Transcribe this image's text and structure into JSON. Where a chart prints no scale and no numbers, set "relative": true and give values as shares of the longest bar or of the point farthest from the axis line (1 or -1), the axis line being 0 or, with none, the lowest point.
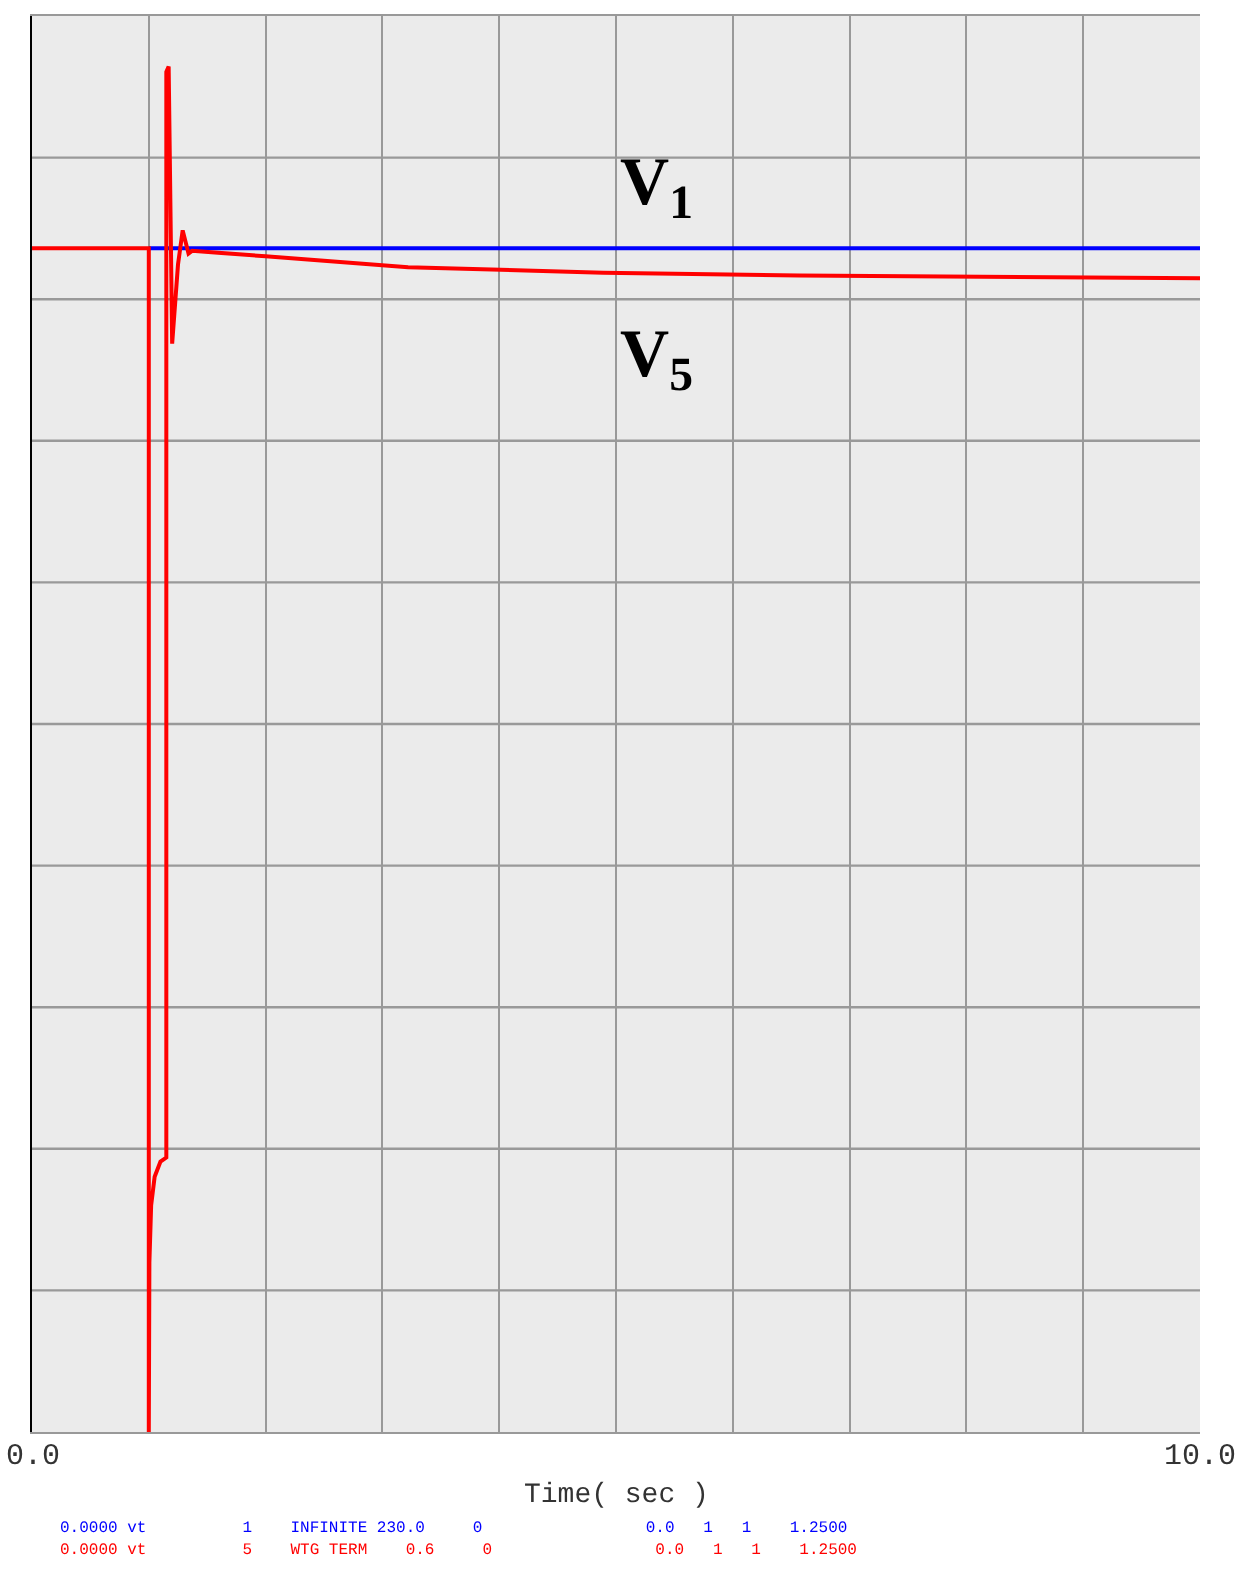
{
  "chart_data": {
    "type": "line",
    "xlabel": "Time( sec )",
    "x": [
      0,
      1.0,
      1.0,
      1.005,
      1.02,
      1.05,
      1.1,
      1.15,
      1.15,
      1.17,
      1.2,
      1.25,
      1.29,
      1.34,
      1.37,
      2.0,
      3.22,
      4.89,
      6.57,
      10
    ],
    "relative": true,
    "series": [
      {
        "name": "V$_{1}$",
        "color": "#0000ff",
        "x": [
          1.0,
          10
        ],
        "values": [
          0.867,
          0.867
        ]
      },
      {
        "name": "V$_{5}$",
        "color": "#ff0000",
        "values": [
          0.867,
          0.867,
          0,
          0.124,
          0.166,
          0.187,
          0.198,
          0.201,
          0.996,
          1,
          0.797,
          0.855,
          0.88,
          0.863,
          0.865,
          0.861,
          0.853,
          0.849,
          0.847,
          0.845
        ]
      }
    ],
    "xlim": [
      0,
      10
    ],
    "xticks": [
      {
        "value": 0,
        "label": "0.0"
      },
      {
        "value": 1,
        "label": null
      },
      {
        "value": 2,
        "label": null
      },
      {
        "value": 3,
        "label": null
      },
      {
        "value": 4,
        "label": null
      },
      {
        "value": 5,
        "label": null
      },
      {
        "value": 6,
        "label": null
      },
      {
        "value": 7,
        "label": null
      },
      {
        "value": 8,
        "label": null
      },
      {
        "value": 9,
        "label": null
      },
      {
        "value": 10,
        "label": "10.0"
      }
    ],
    "grid": true,
    "legend": false,
    "annotations": [
      "0.0000 vt          1    INFINITE 230.0     0                 0.0   1   1    1.2500",
      "0.0000 vt          5    WTG TERM    0.6     0                 0.0   1   1    1.2500"
    ]
  }
}
